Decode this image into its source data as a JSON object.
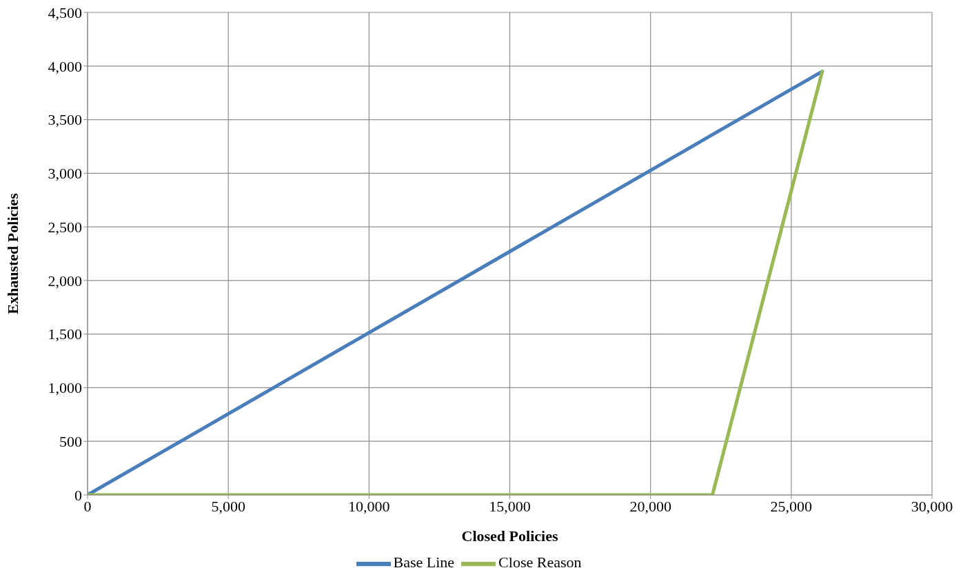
{
  "chart_data": {
    "type": "line",
    "xlabel": "Closed Policies",
    "ylabel": "Exhausted Policies",
    "xlim": [
      0,
      30000
    ],
    "xticks": [
      {
        "value": 0,
        "label": "0"
      },
      {
        "value": 5000,
        "label": "5,000"
      },
      {
        "value": 10000,
        "label": "10,000"
      },
      {
        "value": 15000,
        "label": "15,000"
      },
      {
        "value": 20000,
        "label": "20,000"
      },
      {
        "value": 25000,
        "label": "25,000"
      },
      {
        "value": 30000,
        "label": "30,000"
      }
    ],
    "ylim": [
      0,
      4500
    ],
    "yticks": [
      {
        "value": 0,
        "label": "0"
      },
      {
        "value": 500,
        "label": "500"
      },
      {
        "value": 1000,
        "label": "1,000"
      },
      {
        "value": 1500,
        "label": "1,500"
      },
      {
        "value": 2000,
        "label": "2,000"
      },
      {
        "value": 2500,
        "label": "2,500"
      },
      {
        "value": 3000,
        "label": "3,000"
      },
      {
        "value": 3500,
        "label": "3,500"
      },
      {
        "value": 4000,
        "label": "4,000"
      },
      {
        "value": 4500,
        "label": "4,500"
      }
    ],
    "grid": true,
    "legend": "bottom",
    "marker": "none",
    "line_style": "solid",
    "series": [
      {
        "name": "Base Line",
        "color": "#4a7ebb",
        "x": [
          0,
          26100
        ],
        "values": [
          0,
          3950
        ]
      },
      {
        "name": "Close Reason",
        "color": "#98b954",
        "x": [
          0,
          22200,
          26100
        ],
        "values": [
          0,
          0,
          3950
        ]
      }
    ]
  }
}
